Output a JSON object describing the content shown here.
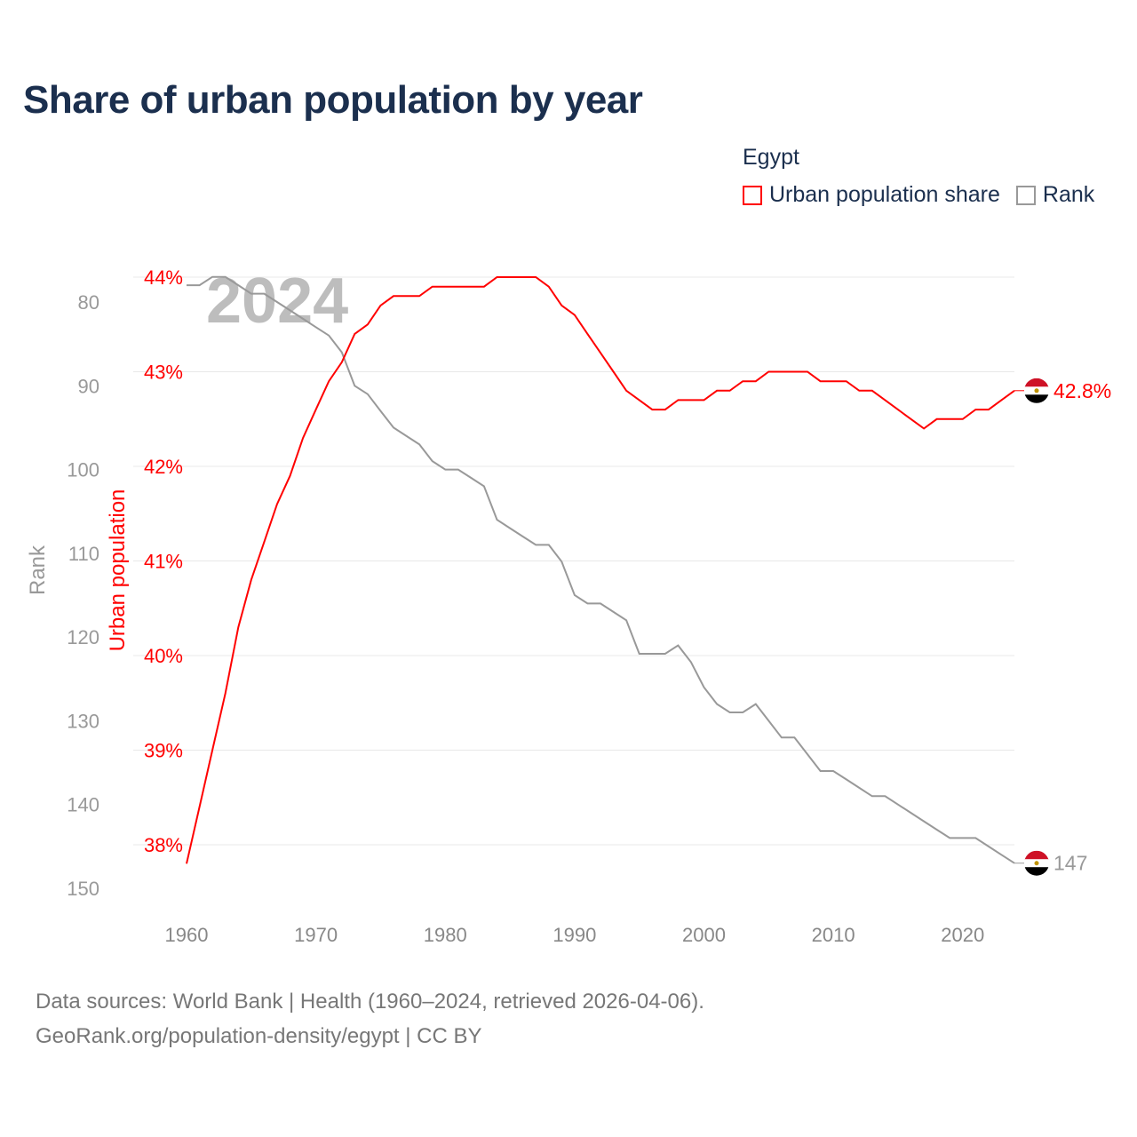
{
  "title": "Share of urban population by year",
  "legend": {
    "title": "Egypt",
    "items": [
      {
        "label": "Urban population share",
        "color": "#ff0000"
      },
      {
        "label": "Rank",
        "color": "#999999"
      }
    ]
  },
  "source": {
    "line1": "Data sources: World Bank | Health (1960–2024, retrieved 2026-04-06).",
    "line2": "GeoRank.org/population-density/egypt | CC BY"
  },
  "colors": {
    "urban": "#ff0000",
    "rank": "#999999",
    "title": "#1b2f4e",
    "grid": "#e8e8e8"
  },
  "chart_data": {
    "type": "line",
    "year_label": "2024",
    "x": [
      1960,
      1961,
      1962,
      1963,
      1964,
      1965,
      1966,
      1967,
      1968,
      1969,
      1970,
      1971,
      1972,
      1973,
      1974,
      1975,
      1976,
      1977,
      1978,
      1979,
      1980,
      1981,
      1982,
      1983,
      1984,
      1985,
      1986,
      1987,
      1988,
      1989,
      1990,
      1991,
      1992,
      1993,
      1994,
      1995,
      1996,
      1997,
      1998,
      1999,
      2000,
      2001,
      2002,
      2003,
      2004,
      2005,
      2006,
      2007,
      2008,
      2009,
      2010,
      2011,
      2012,
      2013,
      2014,
      2015,
      2016,
      2017,
      2018,
      2019,
      2020,
      2021,
      2022,
      2023,
      2024
    ],
    "xlim": [
      1960,
      2024
    ],
    "xticks": [
      "1960",
      "1970",
      "1980",
      "1990",
      "2000",
      "2010",
      "2020"
    ],
    "series": [
      {
        "name": "Urban population share",
        "axis": "left",
        "ylabel": "Urban population",
        "unit": "%",
        "values": [
          37.8,
          38.4,
          39.0,
          39.6,
          40.3,
          40.8,
          41.2,
          41.6,
          41.9,
          42.3,
          42.6,
          42.9,
          43.1,
          43.4,
          43.5,
          43.7,
          43.8,
          43.8,
          43.8,
          43.9,
          43.9,
          43.9,
          43.9,
          43.9,
          44.0,
          44.0,
          44.0,
          44.0,
          43.9,
          43.7,
          43.6,
          43.4,
          43.2,
          43.0,
          42.8,
          42.7,
          42.6,
          42.6,
          42.7,
          42.7,
          42.7,
          42.8,
          42.8,
          42.9,
          42.9,
          43.0,
          43.0,
          43.0,
          43.0,
          42.9,
          42.9,
          42.9,
          42.8,
          42.8,
          42.7,
          42.6,
          42.5,
          42.4,
          42.5,
          42.5,
          42.5,
          42.6,
          42.6,
          42.7,
          42.8
        ],
        "ylim": [
          38,
          44
        ],
        "yticks": [
          "38%",
          "39%",
          "40%",
          "41%",
          "42%",
          "43%",
          "44%"
        ],
        "end_label": "42.8%"
      },
      {
        "name": "Rank",
        "axis": "left-outer",
        "ylabel": "Rank",
        "inverted": true,
        "values": [
          78,
          78,
          77,
          77,
          78,
          79,
          79,
          80,
          81,
          82,
          83,
          84,
          86,
          90,
          91,
          93,
          95,
          96,
          97,
          99,
          100,
          100,
          101,
          102,
          106,
          107,
          108,
          109,
          109,
          111,
          115,
          116,
          116,
          117,
          118,
          122,
          122,
          122,
          121,
          123,
          126,
          128,
          129,
          129,
          128,
          130,
          132,
          132,
          134,
          136,
          136,
          137,
          138,
          139,
          139,
          140,
          141,
          142,
          143,
          144,
          144,
          144,
          145,
          146,
          147
        ],
        "ylim": [
          80,
          150
        ],
        "yticks": [
          "80",
          "90",
          "100",
          "110",
          "120",
          "130",
          "140",
          "150"
        ],
        "end_label": "147"
      }
    ]
  }
}
